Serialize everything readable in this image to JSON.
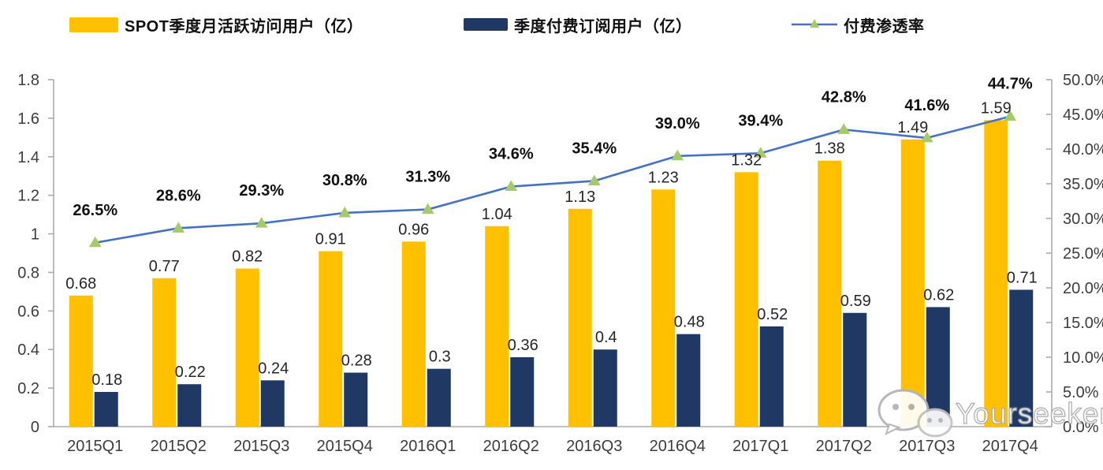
{
  "legend": {
    "items": [
      {
        "label": "SPOT季度月活跃访问用户（亿）",
        "color": "#FFC000",
        "type": "bar"
      },
      {
        "label": "季度付费订阅用户（亿）",
        "color": "#1F3864",
        "type": "bar"
      },
      {
        "label": "付费渗透率",
        "color": "#4472C4",
        "marker_color": "#A6C96A",
        "type": "line"
      }
    ]
  },
  "watermark": {
    "text": "Yourseeker",
    "icon": "wechat-icon"
  },
  "chart_data": {
    "type": "bar",
    "combo": "dual-axis bar + line",
    "title": "",
    "xlabel": "",
    "ylabel": "",
    "grid": false,
    "legend_position": "top",
    "categories": [
      "2015Q1",
      "2015Q2",
      "2015Q3",
      "2015Q4",
      "2016Q1",
      "2016Q2",
      "2016Q3",
      "2016Q4",
      "2017Q1",
      "2017Q2",
      "2017Q3",
      "2017Q4"
    ],
    "series": [
      {
        "name": "SPOT季度月活跃访问用户（亿）",
        "type": "bar",
        "axis": "left",
        "color": "#FFC000",
        "values": [
          0.68,
          0.77,
          0.82,
          0.91,
          0.96,
          1.04,
          1.13,
          1.23,
          1.32,
          1.38,
          1.49,
          1.59
        ],
        "labels": [
          "0.68",
          "0.77",
          "0.82",
          "0.91",
          "0.96",
          "1.04",
          "1.13",
          "1.23",
          "1.32",
          "1.38",
          "1.49",
          "1.59"
        ]
      },
      {
        "name": "季度付费订阅用户（亿）",
        "type": "bar",
        "axis": "left",
        "color": "#1F3864",
        "values": [
          0.18,
          0.22,
          0.24,
          0.28,
          0.3,
          0.36,
          0.4,
          0.48,
          0.52,
          0.59,
          0.62,
          0.71
        ],
        "labels": [
          "0.18",
          "0.22",
          "0.24",
          "0.28",
          "0.3",
          "0.36",
          "0.4",
          "0.48",
          "0.52",
          "0.59",
          "0.62",
          "0.71"
        ]
      },
      {
        "name": "付费渗透率",
        "type": "line",
        "axis": "right",
        "color": "#4472C4",
        "marker": "triangle-up",
        "marker_color": "#A6C96A",
        "values": [
          26.5,
          28.6,
          29.3,
          30.8,
          31.3,
          34.6,
          35.4,
          39.0,
          39.4,
          42.8,
          41.6,
          44.7
        ],
        "labels": [
          "26.5%",
          "28.6%",
          "29.3%",
          "30.8%",
          "31.3%",
          "34.6%",
          "35.4%",
          "39.0%",
          "39.4%",
          "42.8%",
          "41.6%",
          "44.7%"
        ]
      }
    ],
    "axes": {
      "left": {
        "min": 0,
        "max": 1.8,
        "step": 0.2,
        "tick_labels": [
          "0",
          "0.2",
          "0.4",
          "0.6",
          "0.8",
          "1",
          "1.2",
          "1.4",
          "1.6",
          "1.8"
        ]
      },
      "right": {
        "min": 0,
        "max": 50,
        "step": 5,
        "tick_labels": [
          "0.0%",
          "5.0%",
          "10.0%",
          "15.0%",
          "20.0%",
          "25.0%",
          "30.0%",
          "35.0%",
          "40.0%",
          "45.0%",
          "50.0%"
        ]
      }
    }
  }
}
